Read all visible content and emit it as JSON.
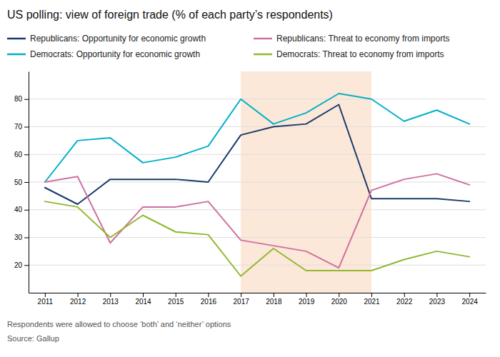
{
  "chart_data": {
    "type": "line",
    "title": "US polling: view of foreign trade (% of each party’s respondents)",
    "annotations": [
      "Respondents were allowed to choose ‘both’ and ‘neither’ options",
      "Source: Gallup"
    ],
    "x": [
      2011,
      2012,
      2013,
      2014,
      2015,
      2016,
      2017,
      2018,
      2019,
      2020,
      2021,
      2022,
      2023,
      2024
    ],
    "series": [
      {
        "name": "Republicans: Opportunity for economic growth",
        "color": "#1a3a6b",
        "values": [
          48,
          42,
          51,
          51,
          51,
          50,
          67,
          70,
          71,
          78,
          44,
          44,
          44,
          43
        ]
      },
      {
        "name": "Democrats: Opportunity for economic growth",
        "color": "#00b0c8",
        "values": [
          50,
          65,
          66,
          57,
          59,
          63,
          80,
          71,
          75,
          82,
          80,
          72,
          76,
          71
        ]
      },
      {
        "name": "Republicans: Threat to economy from imports",
        "color": "#d070a0",
        "values": [
          50,
          52,
          28,
          41,
          41,
          43,
          29,
          27,
          25,
          19,
          47,
          51,
          53,
          49
        ]
      },
      {
        "name": "Democrats: Threat to economy from imports",
        "color": "#90b830",
        "values": [
          43,
          41,
          30,
          38,
          32,
          31,
          16,
          26,
          18,
          18,
          18,
          22,
          25,
          23
        ]
      }
    ],
    "shade": {
      "start": 2017,
      "end": 2021,
      "color": "#fce8d8"
    },
    "xlim": [
      2010.5,
      2024.5
    ],
    "xticks": [
      2011,
      2012,
      2013,
      2014,
      2015,
      2016,
      2017,
      2018,
      2019,
      2020,
      2021,
      2022,
      2023,
      2024
    ],
    "ylim": [
      10,
      90
    ],
    "yticks": [
      20,
      30,
      40,
      50,
      60,
      70,
      80
    ],
    "grid": true,
    "legend": "top"
  }
}
